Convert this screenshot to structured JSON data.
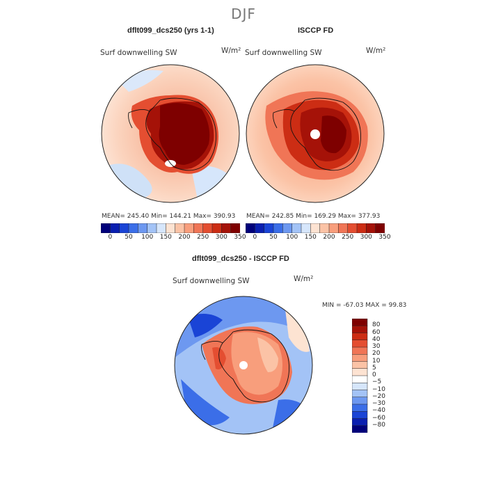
{
  "figure": {
    "season": "DJF"
  },
  "panels": [
    {
      "id": "model",
      "title": "dflt099_dcs250 (yrs 1-1)",
      "variable": "Surf downwelling SW",
      "units": "W/m²",
      "stats": "MEAN= 245.40   Min= 144.21   Max= 390.93"
    },
    {
      "id": "obs",
      "title": "ISCCP FD",
      "variable": "Surf downwelling SW",
      "units": "W/m²",
      "stats": "MEAN= 242.85   Min= 169.29   Max= 377.93"
    },
    {
      "id": "diff",
      "title": "dflt099_dcs250 - ISCCP FD",
      "variable": "Surf downwelling SW",
      "units": "W/m²",
      "stats": "MIN = -67.03  MAX =  99.83"
    }
  ],
  "chart_data": [
    {
      "type": "heatmap",
      "projection": "south polar stereographic",
      "title": "dflt099_dcs250 (yrs 1-1)",
      "variable": "Surf downwelling SW",
      "units": "W/m²",
      "mean": 245.4,
      "min": 144.21,
      "max": 390.93,
      "colorbar_ticks": [
        "0",
        "50",
        "100",
        "150",
        "200",
        "250",
        "300",
        "350"
      ],
      "levels": [
        0,
        25,
        50,
        75,
        100,
        125,
        150,
        175,
        200,
        225,
        250,
        275,
        300,
        325,
        350
      ]
    },
    {
      "type": "heatmap",
      "projection": "south polar stereographic",
      "title": "ISCCP FD",
      "variable": "Surf downwelling SW",
      "units": "W/m²",
      "mean": 242.85,
      "min": 169.29,
      "max": 377.93,
      "colorbar_ticks": [
        "0",
        "50",
        "100",
        "150",
        "200",
        "250",
        "300",
        "350"
      ],
      "levels": [
        0,
        25,
        50,
        75,
        100,
        125,
        150,
        175,
        200,
        225,
        250,
        275,
        300,
        325,
        350
      ]
    },
    {
      "type": "heatmap",
      "projection": "south polar stereographic",
      "title": "dflt099_dcs250 - ISCCP FD",
      "variable": "Surf downwelling SW",
      "units": "W/m²",
      "min": -67.03,
      "max": 99.83,
      "colorbar_ticks": [
        "80",
        "60",
        "40",
        "30",
        "20",
        "10",
        "5",
        "0",
        "−5",
        "−10",
        "−20",
        "−30",
        "−40",
        "−60",
        "−80"
      ]
    }
  ],
  "palettes": {
    "abs": [
      "#00007a",
      "#0a1fb0",
      "#1a44d6",
      "#3b6ee8",
      "#6d98f0",
      "#a3c3f6",
      "#d6e6fb",
      "#fde3d2",
      "#fbc3a6",
      "#f89e7c",
      "#f07556",
      "#e44e31",
      "#cc2d14",
      "#a51208",
      "#7e0000"
    ],
    "diff": [
      "#7e0000",
      "#a51208",
      "#cc2d14",
      "#e44e31",
      "#f07556",
      "#f89e7c",
      "#fbc3a6",
      "#fde3d2",
      "#ffffff",
      "#d6e6fb",
      "#a3c3f6",
      "#6d98f0",
      "#3b6ee8",
      "#1a44d6",
      "#0a1fb0",
      "#00007a"
    ]
  }
}
